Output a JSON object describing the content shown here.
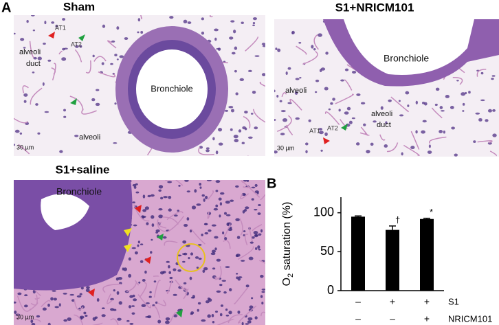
{
  "figure": {
    "panel_a": {
      "label": "A",
      "images": [
        {
          "title": "Sham",
          "labels": [
            "AT1",
            "AT2",
            "alveoli",
            "duct",
            "Bronchiole",
            "alveoli"
          ],
          "scale": "30 µm"
        },
        {
          "title": "S1+NRICM101",
          "labels": [
            "Bronchiole",
            "alveoli",
            "alveoli",
            "duct",
            "AT1",
            "AT2"
          ],
          "scale": "30 µm"
        },
        {
          "title": "S1+saline",
          "labels": [
            "Bronchiole"
          ],
          "scale": "30 µm"
        }
      ]
    },
    "panel_b": {
      "label": "B"
    }
  },
  "chart_data": {
    "type": "bar",
    "y_label": {
      "main": "O",
      "sub": "2",
      "rest": " saturation (%)"
    },
    "categories": [
      null,
      null,
      null
    ],
    "series": [
      {
        "color": "#000000",
        "values": [
          95,
          78,
          92
        ],
        "errors": [
          1,
          5,
          1
        ]
      }
    ],
    "annotations": [
      null,
      "†",
      "*"
    ],
    "rows": [
      {
        "name": "S1",
        "marks": [
          "–",
          "+",
          "+"
        ]
      },
      {
        "name": "NRICM101",
        "marks": [
          "–",
          "–",
          "+"
        ]
      }
    ],
    "ylim": [
      0,
      120
    ],
    "yticks": [
      0,
      50,
      100
    ]
  }
}
